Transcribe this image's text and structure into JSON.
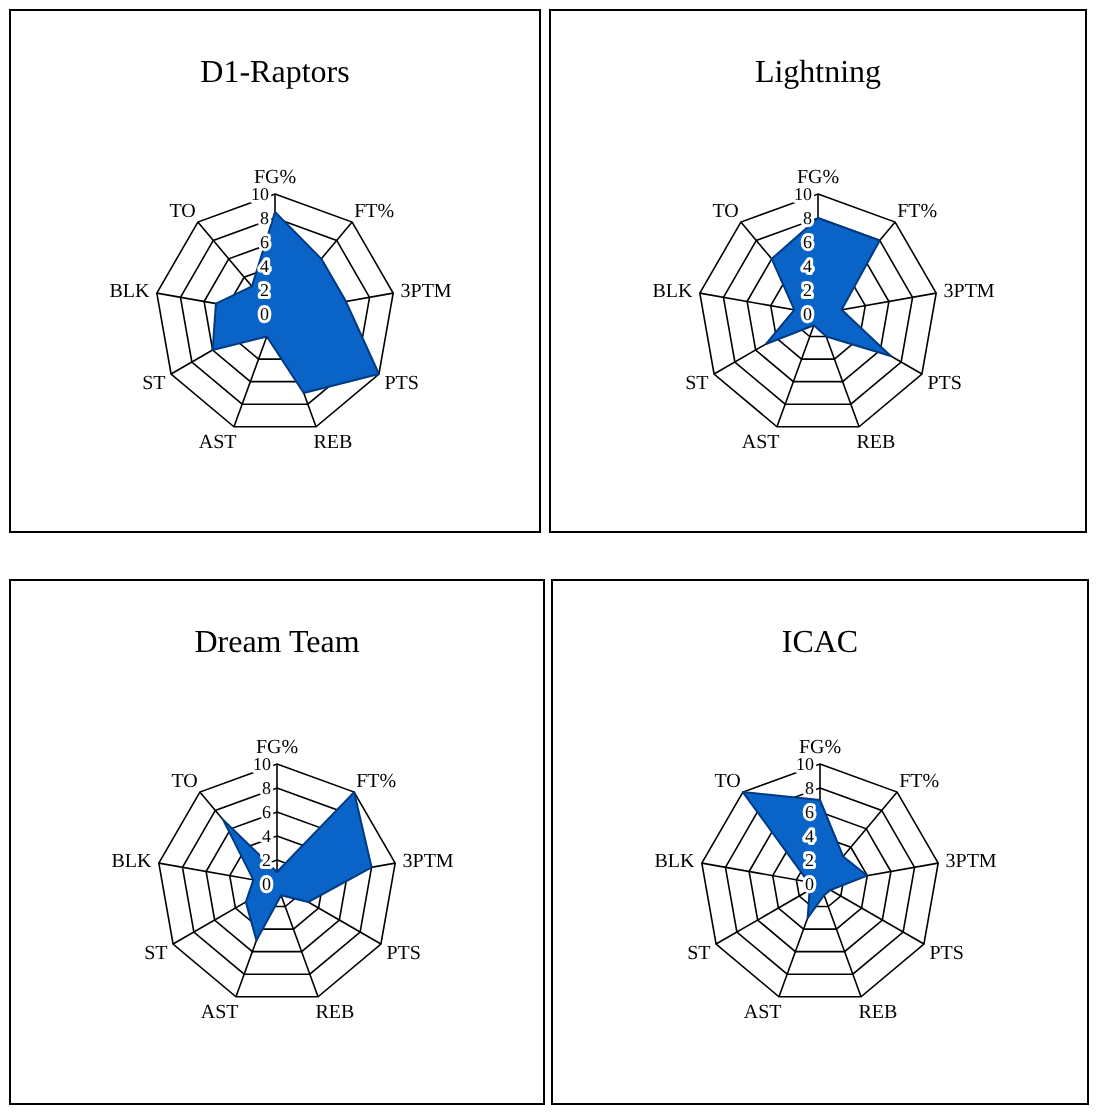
{
  "chart_data": [
    {
      "type": "radar",
      "title": "D1-Raptors",
      "categories": [
        "FG%",
        "FT%",
        "3PTM",
        "PTS",
        "REB",
        "AST",
        "ST",
        "BLK",
        "TO"
      ],
      "ylim": [
        0,
        10
      ],
      "yticks": [
        0,
        2,
        4,
        6,
        8,
        10
      ],
      "grid": true,
      "series": [
        {
          "color": "#0a64c8",
          "values": [
            8.5,
            6,
            6,
            10,
            7,
            2,
            6,
            5,
            3
          ]
        }
      ]
    },
    {
      "type": "radar",
      "title": "Lightning",
      "categories": [
        "FG%",
        "FT%",
        "3PTM",
        "PTS",
        "REB",
        "AST",
        "ST",
        "BLK",
        "TO"
      ],
      "ylim": [
        0,
        10
      ],
      "yticks": [
        0,
        2,
        4,
        6,
        8,
        10
      ],
      "grid": true,
      "series": [
        {
          "color": "#0a64c8",
          "values": [
            8,
            8,
            2,
            7,
            2,
            1,
            5,
            2,
            6
          ]
        }
      ]
    },
    {
      "type": "radar",
      "title": "Dream Team",
      "categories": [
        "FG%",
        "FT%",
        "3PTM",
        "PTS",
        "REB",
        "AST",
        "ST",
        "BLK",
        "TO"
      ],
      "ylim": [
        0,
        10
      ],
      "yticks": [
        0,
        2,
        4,
        6,
        8,
        10
      ],
      "grid": true,
      "series": [
        {
          "color": "#0a64c8",
          "values": [
            1,
            10,
            8,
            3,
            1,
            5,
            3,
            2,
            7
          ]
        }
      ]
    },
    {
      "type": "radar",
      "title": "ICAC",
      "categories": [
        "FG%",
        "FT%",
        "3PTM",
        "PTS",
        "REB",
        "AST",
        "ST",
        "BLK",
        "TO"
      ],
      "ylim": [
        0,
        10
      ],
      "yticks": [
        0,
        2,
        4,
        6,
        8,
        10
      ],
      "grid": true,
      "series": [
        {
          "color": "#0a64c8",
          "values": [
            7,
            3,
            4,
            1,
            1,
            3,
            1,
            1,
            10
          ]
        }
      ]
    }
  ]
}
